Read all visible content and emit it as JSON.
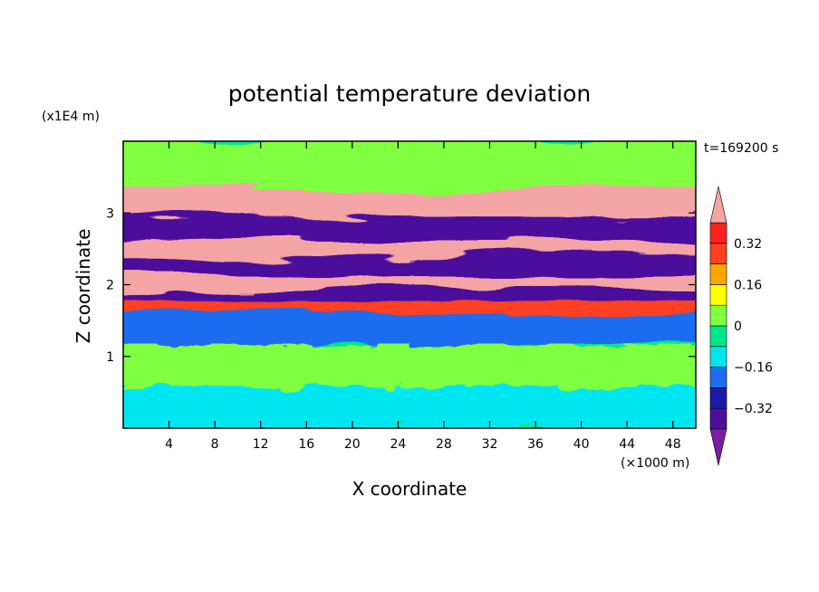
{
  "chart_data": {
    "type": "heatmap",
    "title": "potential temperature deviation",
    "xlabel": "X coordinate",
    "ylabel": "Z coordinate",
    "x_unit": "(×1000 m)",
    "y_unit": "(x1E4 m)",
    "time_label": "t=169200 s",
    "xlim": [
      0,
      50
    ],
    "ylim": [
      0,
      4
    ],
    "x_ticks": [
      4,
      8,
      12,
      16,
      20,
      24,
      28,
      32,
      36,
      40,
      44,
      48
    ],
    "y_ticks": [
      1,
      2,
      3
    ],
    "colorbar": {
      "levels": [
        -0.4,
        -0.32,
        -0.24,
        -0.16,
        -0.08,
        0,
        0.08,
        0.16,
        0.24,
        0.32,
        0.4
      ],
      "labels": [
        "0.32",
        "0.16",
        "0",
        "−0.16",
        "−0.32"
      ],
      "label_values": [
        0.32,
        0.16,
        0,
        -0.16,
        -0.32
      ],
      "colors": [
        "#7a1fa2",
        "#4b0f9c",
        "#1a1aa8",
        "#1e6cf0",
        "#00e6f0",
        "#00e68c",
        "#80ff40",
        "#ffff00",
        "#ffa500",
        "#ff4020",
        "#ff2020",
        "#f4a4a4"
      ],
      "extend": "both"
    },
    "field_description_bands": [
      {
        "z": [
          3.3,
          4.0
        ],
        "value": 0.0
      },
      {
        "z": [
          2.9,
          3.3
        ],
        "value": 0.4
      },
      {
        "z": [
          2.6,
          2.9
        ],
        "value": -0.4
      },
      {
        "z": [
          2.35,
          2.6
        ],
        "value": 0.4
      },
      {
        "z": [
          2.1,
          2.35
        ],
        "value": -0.4
      },
      {
        "z": [
          1.9,
          2.1
        ],
        "value": 0.4
      },
      {
        "z": [
          1.75,
          1.9
        ],
        "value": -0.4
      },
      {
        "z": [
          1.55,
          1.75
        ],
        "value": 0.3
      },
      {
        "z": [
          1.15,
          1.55
        ],
        "value": -0.2
      },
      {
        "z": [
          0.55,
          1.15
        ],
        "value": 0.04
      },
      {
        "z": [
          0.0,
          0.55
        ],
        "value": -0.1
      }
    ]
  }
}
